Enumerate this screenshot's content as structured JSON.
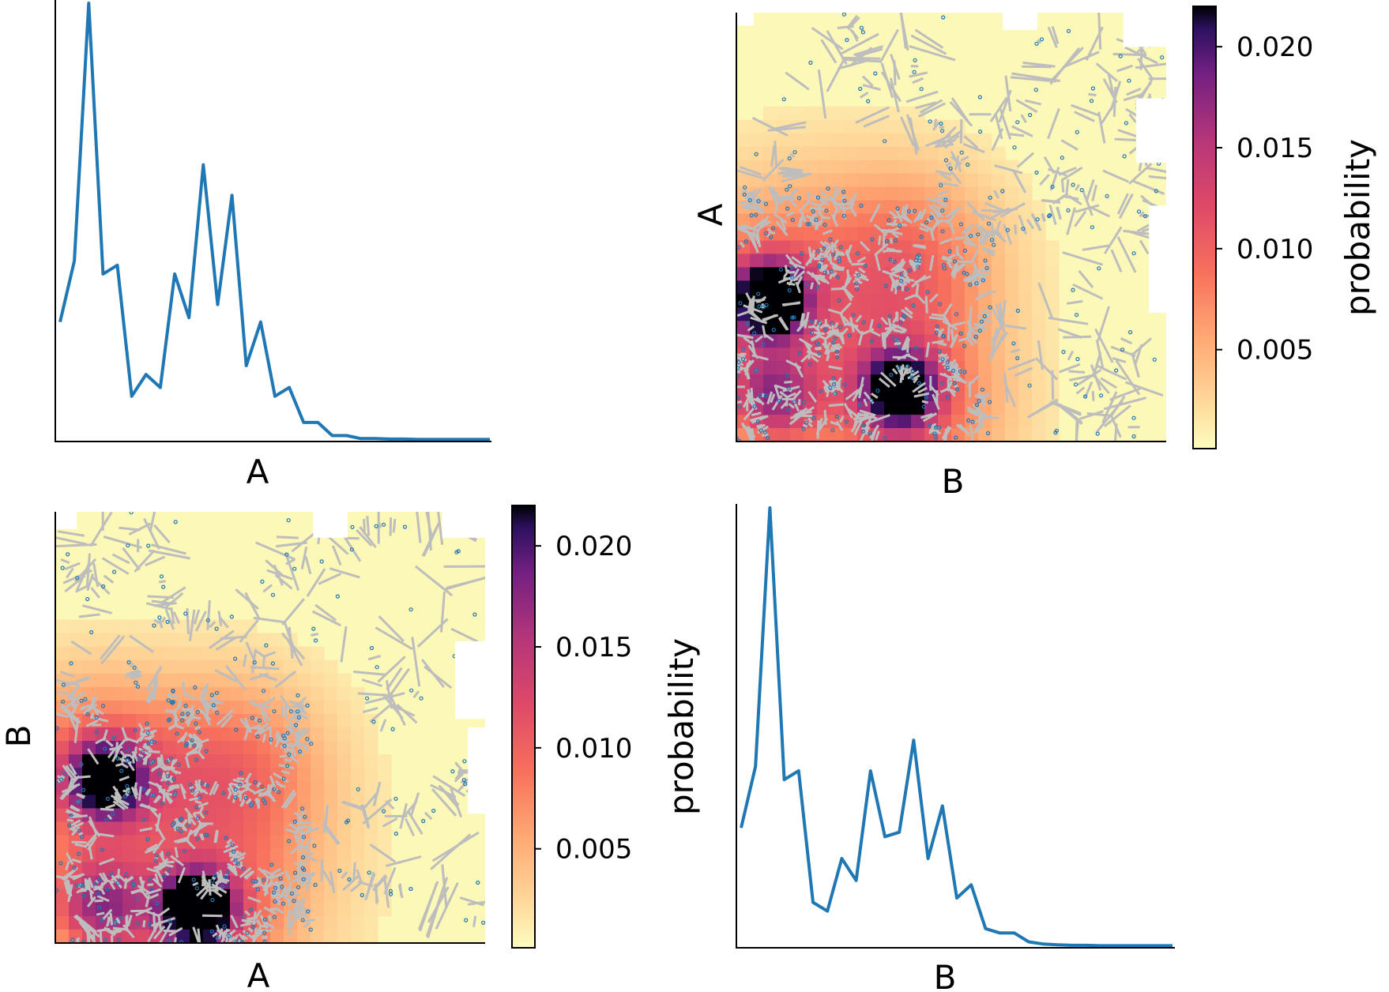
{
  "chart_data": [
    {
      "panel": "top-left",
      "type": "line",
      "xlabel": "A",
      "ylabel": "",
      "grid": false,
      "color": "#1f77b4",
      "y": [
        0.27,
        0.41,
        1.0,
        0.38,
        0.4,
        0.1,
        0.15,
        0.12,
        0.38,
        0.28,
        0.63,
        0.31,
        0.56,
        0.17,
        0.27,
        0.1,
        0.12,
        0.04,
        0.04,
        0.01,
        0.01,
        0.003,
        0.003,
        0.002,
        0.002,
        0.001,
        0.001,
        0.001,
        0.001,
        0.001,
        0.001
      ]
    },
    {
      "panel": "top-right",
      "type": "heatmap",
      "xlabel": "B",
      "ylabel": "A",
      "colorbar": {
        "label": "probability",
        "ticks": [
          "0.005",
          "0.010",
          "0.015",
          "0.020"
        ],
        "tick_values": [
          0.005,
          0.01,
          0.015,
          0.02
        ],
        "range": [
          0.0001,
          0.022
        ],
        "colormap": "magma_r"
      },
      "overlay": "voronoi cells (gray edges) with blue seed points",
      "edge_color": "#bdbdbd",
      "point_color": "#1f77b4"
    },
    {
      "panel": "bottom-left",
      "type": "heatmap",
      "xlabel": "A",
      "ylabel": "B",
      "colorbar": {
        "label": "probability",
        "ticks": [
          "0.005",
          "0.010",
          "0.015",
          "0.020"
        ],
        "tick_values": [
          0.005,
          0.01,
          0.015,
          0.02
        ],
        "range": [
          0.0001,
          0.022
        ],
        "colormap": "magma_r"
      },
      "overlay": "voronoi cells (gray edges) with blue seed points",
      "edge_color": "#bdbdbd",
      "point_color": "#1f77b4"
    },
    {
      "panel": "bottom-right",
      "type": "line",
      "xlabel": "B",
      "ylabel": "",
      "grid": false,
      "color": "#1f77b4",
      "y": [
        0.27,
        0.41,
        1.0,
        0.38,
        0.4,
        0.1,
        0.08,
        0.2,
        0.15,
        0.4,
        0.25,
        0.26,
        0.47,
        0.2,
        0.32,
        0.11,
        0.14,
        0.04,
        0.03,
        0.03,
        0.01,
        0.005,
        0.003,
        0.002,
        0.002,
        0.001,
        0.001,
        0.001,
        0.001,
        0.001,
        0.001
      ]
    }
  ]
}
